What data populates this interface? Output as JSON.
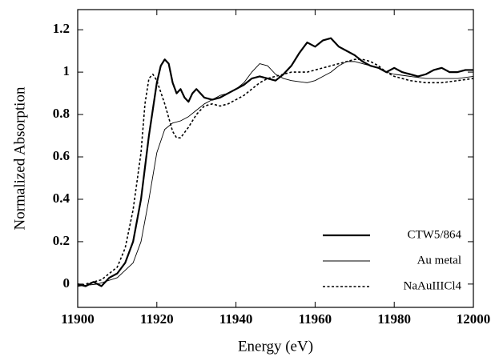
{
  "chart_data": {
    "type": "line",
    "x_label": "Energy (eV)",
    "y_label": "Normalized Absorption",
    "xlim": [
      11900,
      12000
    ],
    "xticks": [
      11900,
      11920,
      11940,
      11960,
      11980,
      12000
    ],
    "ylim": [
      -0.11,
      1.295
    ],
    "yticks": [
      0,
      0.2,
      0.4,
      0.6,
      0.8,
      1,
      1.2
    ],
    "legend": "lower right",
    "series": [
      {
        "name": "CTW5/864",
        "color": "#000000",
        "width": 2.2,
        "dash": "solid",
        "x": [
          11900,
          11902,
          11904,
          11906,
          11908,
          11910,
          11912,
          11914,
          11916,
          11918,
          11920,
          11921,
          11922,
          11923,
          11924,
          11925,
          11926,
          11927,
          11928,
          11929,
          11930,
          11932,
          11934,
          11936,
          11938,
          11940,
          11942,
          11944,
          11946,
          11948,
          11950,
          11952,
          11954,
          11956,
          11958,
          11960,
          11962,
          11964,
          11966,
          11968,
          11970,
          11972,
          11974,
          11976,
          11978,
          11980,
          11982,
          11984,
          11986,
          11988,
          11990,
          11992,
          11994,
          11996,
          11998,
          12000
        ],
        "values": [
          0,
          -0.01,
          0.01,
          -0.01,
          0.03,
          0.05,
          0.1,
          0.2,
          0.4,
          0.7,
          0.95,
          1.03,
          1.06,
          1.04,
          0.95,
          0.9,
          0.92,
          0.88,
          0.86,
          0.9,
          0.92,
          0.88,
          0.87,
          0.88,
          0.9,
          0.92,
          0.94,
          0.97,
          0.98,
          0.97,
          0.96,
          0.99,
          1.03,
          1.09,
          1.14,
          1.12,
          1.15,
          1.16,
          1.12,
          1.1,
          1.08,
          1.05,
          1.03,
          1.02,
          1,
          1.02,
          1,
          0.99,
          0.98,
          0.99,
          1.01,
          1.02,
          1,
          1,
          1.01,
          1.01
        ]
      },
      {
        "name": "Au metal",
        "color": "#000000",
        "width": 0.9,
        "dash": "solid",
        "x": [
          11900,
          11905,
          11910,
          11914,
          11916,
          11918,
          11920,
          11922,
          11924,
          11926,
          11928,
          11930,
          11932,
          11934,
          11936,
          11938,
          11940,
          11942,
          11944,
          11946,
          11948,
          11950,
          11952,
          11954,
          11956,
          11958,
          11960,
          11962,
          11964,
          11966,
          11968,
          11970,
          11972,
          11974,
          11976,
          11978,
          11980,
          11984,
          11988,
          11992,
          11996,
          12000
        ],
        "values": [
          -0.01,
          0,
          0.03,
          0.1,
          0.2,
          0.4,
          0.62,
          0.73,
          0.76,
          0.77,
          0.79,
          0.82,
          0.85,
          0.87,
          0.89,
          0.9,
          0.92,
          0.95,
          1,
          1.04,
          1.03,
          0.99,
          0.97,
          0.96,
          0.955,
          0.95,
          0.96,
          0.98,
          1,
          1.03,
          1.05,
          1.05,
          1.04,
          1.03,
          1.02,
          1,
          0.99,
          0.98,
          0.97,
          0.97,
          0.97,
          0.98
        ]
      },
      {
        "name": "NaAuIIICl4",
        "color": "#000000",
        "width": 1.6,
        "dash": "dotted",
        "x": [
          11900,
          11906,
          11910,
          11912,
          11914,
          11916,
          11917,
          11918,
          11919,
          11920,
          11922,
          11924,
          11925,
          11926,
          11928,
          11930,
          11932,
          11934,
          11936,
          11938,
          11940,
          11942,
          11944,
          11946,
          11948,
          11950,
          11952,
          11954,
          11956,
          11958,
          11960,
          11962,
          11964,
          11966,
          11968,
          11970,
          11972,
          11974,
          11976,
          11978,
          11980,
          11984,
          11988,
          11992,
          11996,
          12000
        ],
        "values": [
          -0.01,
          0.02,
          0.08,
          0.17,
          0.35,
          0.62,
          0.85,
          0.97,
          0.99,
          0.96,
          0.85,
          0.72,
          0.69,
          0.69,
          0.74,
          0.8,
          0.84,
          0.85,
          0.84,
          0.85,
          0.87,
          0.89,
          0.92,
          0.95,
          0.97,
          0.98,
          0.99,
          1,
          1,
          1,
          1.01,
          1.02,
          1.03,
          1.04,
          1.05,
          1.06,
          1.06,
          1.05,
          1.03,
          1,
          0.98,
          0.96,
          0.95,
          0.95,
          0.96,
          0.97
        ]
      }
    ]
  }
}
